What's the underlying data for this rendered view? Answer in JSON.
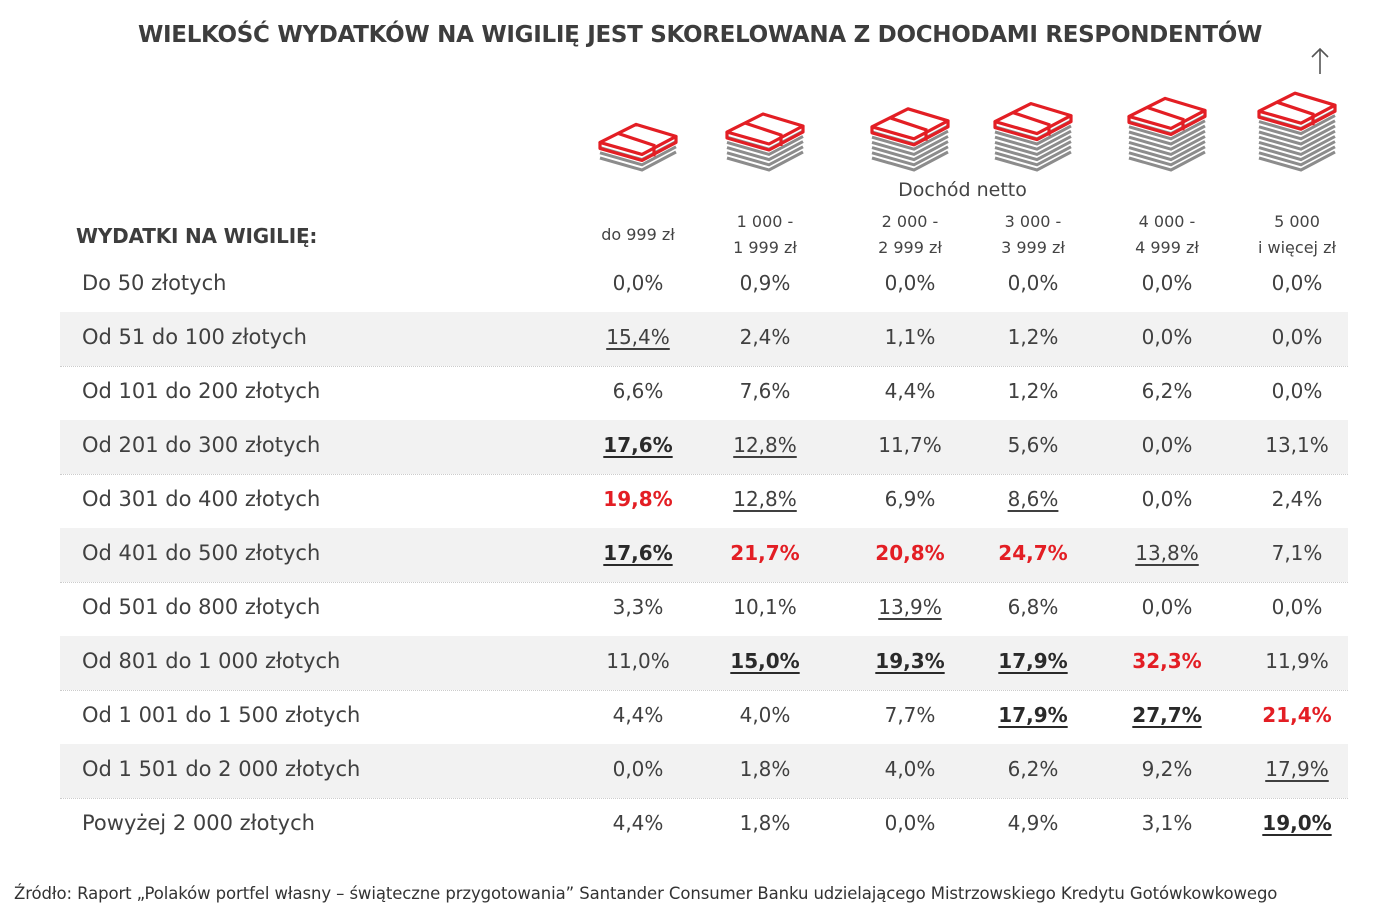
{
  "title": "WIELKOŚĆ WYDATKÓW NA WIGILIĘ JEST SKORELOWANA Z DOCHODAMI RESPONDENTÓW",
  "income_header": "Dochód netto",
  "row_header": "WYDATKI NA WIGILIĘ:",
  "colors": {
    "accent": "#e31e24",
    "stack_gray": "#8c8c8c",
    "row_shade": "#f2f2f2"
  },
  "icons": [
    "money-stack-icon",
    "money-stack-icon",
    "money-stack-icon",
    "money-stack-icon",
    "money-stack-icon",
    "money-stack-icon"
  ],
  "chart_data": {
    "type": "table",
    "columns": [
      {
        "line1": "do 999 zł",
        "line2": ""
      },
      {
        "line1": "1 000 -",
        "line2": "1 999 zł"
      },
      {
        "line1": "2 000 -",
        "line2": "2 999 zł"
      },
      {
        "line1": "3 000 -",
        "line2": "3 999 zł"
      },
      {
        "line1": "4 000 -",
        "line2": "4 999 zł"
      },
      {
        "line1": "5 000",
        "line2": "i więcej zł"
      }
    ],
    "rows": [
      {
        "label": "Do 50 złotych",
        "values": [
          "0,0%",
          "0,9%",
          "0,0%",
          "0,0%",
          "0,0%",
          "0,0%"
        ],
        "styles": [
          "n",
          "n",
          "n",
          "n",
          "n",
          "n"
        ]
      },
      {
        "label": "Od 51 do 100 złotych",
        "values": [
          "15,4%",
          "2,4%",
          "1,1%",
          "1,2%",
          "0,0%",
          "0,0%"
        ],
        "styles": [
          "u",
          "n",
          "n",
          "n",
          "n",
          "n"
        ]
      },
      {
        "label": "Od 101 do 200 złotych",
        "values": [
          "6,6%",
          "7,6%",
          "4,4%",
          "1,2%",
          "6,2%",
          "0,0%"
        ],
        "styles": [
          "n",
          "n",
          "n",
          "n",
          "n",
          "n"
        ]
      },
      {
        "label": "Od 201 do 300 złotych",
        "values": [
          "17,6%",
          "12,8%",
          "11,7%",
          "5,6%",
          "0,0%",
          "13,1%"
        ],
        "styles": [
          "b",
          "u",
          "n",
          "n",
          "n",
          "n"
        ]
      },
      {
        "label": "Od 301 do 400 złotych",
        "values": [
          "19,8%",
          "12,8%",
          "6,9%",
          "8,6%",
          "0,0%",
          "2,4%"
        ],
        "styles": [
          "r",
          "u",
          "n",
          "u",
          "n",
          "n"
        ]
      },
      {
        "label": "Od 401 do 500 złotych",
        "values": [
          "17,6%",
          "21,7%",
          "20,8%",
          "24,7%",
          "13,8%",
          "7,1%"
        ],
        "styles": [
          "b",
          "r",
          "r",
          "r",
          "u",
          "n"
        ]
      },
      {
        "label": "Od 501 do 800 złotych",
        "values": [
          "3,3%",
          "10,1%",
          "13,9%",
          "6,8%",
          "0,0%",
          "0,0%"
        ],
        "styles": [
          "n",
          "n",
          "u",
          "n",
          "n",
          "n"
        ]
      },
      {
        "label": "Od 801 do 1 000 złotych",
        "values": [
          "11,0%",
          "15,0%",
          "19,3%",
          "17,9%",
          "32,3%",
          "11,9%"
        ],
        "styles": [
          "n",
          "b",
          "b",
          "b",
          "r",
          "n"
        ]
      },
      {
        "label": "Od 1 001 do 1 500 złotych",
        "values": [
          "4,4%",
          "4,0%",
          "7,7%",
          "17,9%",
          "27,7%",
          "21,4%"
        ],
        "styles": [
          "n",
          "n",
          "n",
          "b",
          "b",
          "r"
        ]
      },
      {
        "label": "Od 1 501 do 2 000 złotych",
        "values": [
          "0,0%",
          "1,8%",
          "4,0%",
          "6,2%",
          "9,2%",
          "17,9%"
        ],
        "styles": [
          "n",
          "n",
          "n",
          "n",
          "n",
          "u"
        ]
      },
      {
        "label": "Powyżej 2 000 złotych",
        "values": [
          "4,4%",
          "1,8%",
          "0,0%",
          "4,9%",
          "3,1%",
          "19,0%"
        ],
        "styles": [
          "n",
          "n",
          "n",
          "n",
          "n",
          "b"
        ]
      }
    ]
  },
  "source": "Źródło: Raport „Polaków portfel własny – świąteczne przygotowania” Santander Consumer Banku udzielającego Mistrzowskiego Kredytu Gotówkowkowego"
}
